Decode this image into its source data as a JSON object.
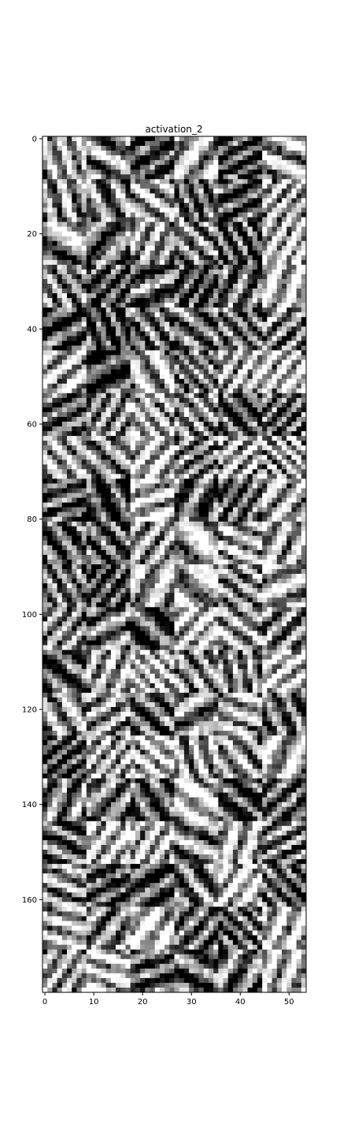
{
  "chart_data": {
    "type": "heatmap",
    "title": "activation_2",
    "colormap": "gray",
    "grid": false,
    "layout_description": "Montage of small grayscale activation maps: 6 columns by 20 rows of 9x9 tiles, shown as an image 54 px wide and 180 px tall",
    "tile_size": 9,
    "tile_columns": 6,
    "tile_rows": 20,
    "xlim": [
      -0.5,
      53.5
    ],
    "ylim": [
      179.5,
      -0.5
    ],
    "x_ticks": [
      0,
      10,
      20,
      30,
      40,
      50
    ],
    "y_ticks": [
      0,
      20,
      40,
      60,
      80,
      100,
      120,
      140,
      160
    ],
    "xlabel": "",
    "ylabel": ""
  },
  "colors": {
    "background": "#ffffff",
    "axis": "#000000"
  }
}
